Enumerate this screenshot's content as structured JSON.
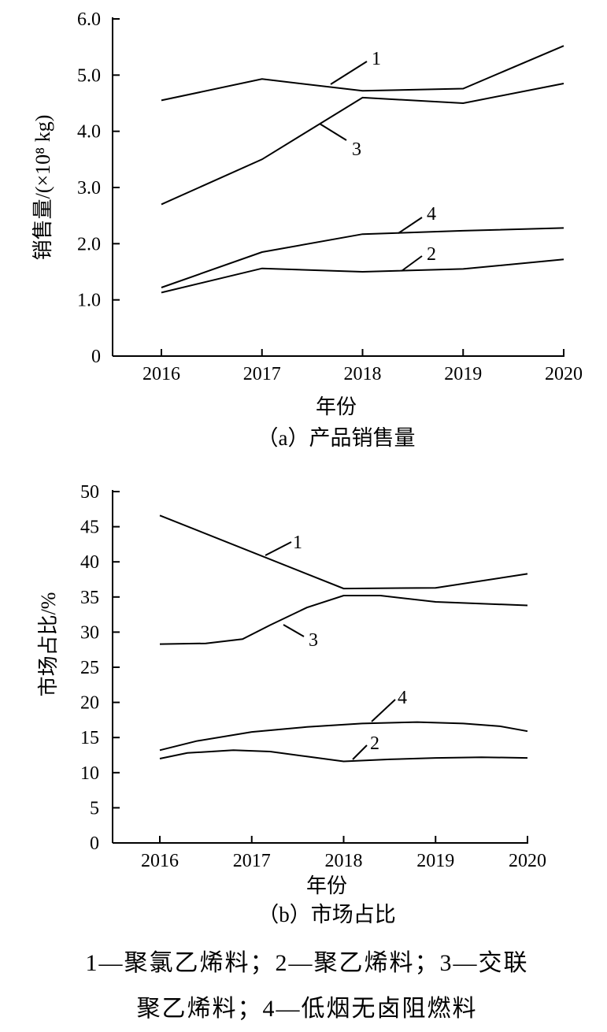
{
  "chart_data": [
    {
      "type": "line",
      "caption": "（a）产品销售量",
      "xlabel": "年份",
      "ylabel": "销售量/(×10⁸ kg)",
      "x": [
        "2016",
        "2017",
        "2018",
        "2019",
        "2020"
      ],
      "xlim": [
        2016,
        2020
      ],
      "ylim": [
        0,
        6
      ],
      "yticks": [
        "0",
        "1.0",
        "2.0",
        "3.0",
        "4.0",
        "5.0",
        "6.0"
      ],
      "grid": false,
      "series": [
        {
          "name": "1",
          "x": [
            2016,
            2017,
            2018,
            2019,
            2020
          ],
          "values": [
            4.55,
            4.93,
            4.72,
            4.76,
            5.52
          ]
        },
        {
          "name": "2",
          "x": [
            2016,
            2017,
            2018,
            2019,
            2020
          ],
          "values": [
            1.13,
            1.56,
            1.5,
            1.55,
            1.72
          ]
        },
        {
          "name": "3",
          "x": [
            2016,
            2017,
            2018,
            2019,
            2020
          ],
          "values": [
            2.7,
            3.5,
            4.6,
            4.5,
            4.85
          ]
        },
        {
          "name": "4",
          "x": [
            2016,
            2017,
            2018,
            2019,
            2020
          ],
          "values": [
            1.22,
            1.85,
            2.17,
            2.23,
            2.28
          ]
        }
      ],
      "labels": [
        "1",
        "2",
        "3",
        "4"
      ]
    },
    {
      "type": "line",
      "caption": "（b）市场占比",
      "xlabel": "年份",
      "ylabel": "市场占比/%",
      "x": [
        "2016",
        "2017",
        "2018",
        "2019",
        "2020"
      ],
      "xlim": [
        2016,
        2020
      ],
      "ylim": [
        0,
        50
      ],
      "yticks": [
        "0",
        "5",
        "10",
        "15",
        "20",
        "25",
        "30",
        "35",
        "40",
        "45",
        "50"
      ],
      "grid": false,
      "series": [
        {
          "name": "1",
          "x": [
            2016,
            2018,
            2019,
            2020
          ],
          "values": [
            46.6,
            36.2,
            36.3,
            38.3
          ]
        },
        {
          "name": "2",
          "x": [
            2016,
            2016.3,
            2016.8,
            2017.2,
            2017.6,
            2018,
            2018.5,
            2019,
            2019.5,
            2020
          ],
          "values": [
            12.0,
            12.8,
            13.2,
            13.0,
            12.3,
            11.6,
            11.9,
            12.1,
            12.2,
            12.1
          ]
        },
        {
          "name": "3",
          "x": [
            2016,
            2016.5,
            2016.9,
            2017.2,
            2017.6,
            2018,
            2018.4,
            2019,
            2020
          ],
          "values": [
            28.3,
            28.4,
            29.0,
            31.0,
            33.5,
            35.2,
            35.2,
            34.3,
            33.8
          ]
        },
        {
          "name": "4",
          "x": [
            2016,
            2016.4,
            2017,
            2017.6,
            2018.2,
            2018.8,
            2019.3,
            2019.7,
            2020
          ],
          "values": [
            13.2,
            14.5,
            15.8,
            16.5,
            17.0,
            17.2,
            17.0,
            16.6,
            15.9
          ]
        }
      ],
      "labels": [
        "1",
        "2",
        "3",
        "4"
      ]
    }
  ],
  "legend": {
    "line1": "1—聚氯乙烯料；2—聚乙烯料；3—交联",
    "line2": "聚乙烯料；4—低烟无卤阻燃料"
  }
}
